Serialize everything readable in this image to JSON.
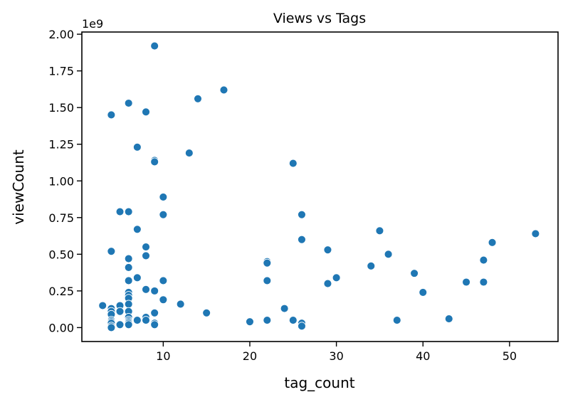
{
  "chart_data": {
    "type": "scatter",
    "title": "Views vs Tags",
    "xlabel": "tag_count",
    "ylabel": "viewCount",
    "y_offset_label": "1e9",
    "xlim": [
      0.6,
      55.6
    ],
    "ylim": [
      -0.095,
      2.015
    ],
    "xticks": [
      10,
      20,
      30,
      40,
      50
    ],
    "yticks": [
      0.0,
      0.25,
      0.5,
      0.75,
      1.0,
      1.25,
      1.5,
      1.75,
      2.0
    ],
    "ytick_labels": [
      "0.00",
      "0.25",
      "0.50",
      "0.75",
      "1.00",
      "1.25",
      "1.50",
      "1.75",
      "2.00"
    ],
    "grid": false,
    "color": "#1f77b4",
    "series": [
      {
        "x": [
          3,
          4,
          4,
          4,
          4,
          4,
          4,
          4,
          4,
          4,
          4,
          5,
          5,
          5,
          5,
          6,
          6,
          6,
          6,
          6,
          6,
          6,
          6,
          6,
          6,
          6,
          6,
          6,
          6,
          6,
          7,
          7,
          7,
          7,
          8,
          8,
          8,
          8,
          8,
          8,
          9,
          9,
          9,
          9,
          9,
          9,
          9,
          10,
          10,
          10,
          10,
          12,
          13,
          14,
          15,
          17,
          20,
          22,
          22,
          22,
          22,
          24,
          25,
          25,
          26,
          26,
          26,
          26,
          29,
          29,
          30,
          34,
          35,
          36,
          37,
          39,
          40,
          43,
          45,
          47,
          47,
          48,
          53
        ],
        "y": [
          0.15,
          1.45,
          0.52,
          0.13,
          0.11,
          0.09,
          0.05,
          0.04,
          0.03,
          0.01,
          0.0,
          0.79,
          0.15,
          0.11,
          0.02,
          1.53,
          0.79,
          0.47,
          0.41,
          0.32,
          0.24,
          0.22,
          0.2,
          0.16,
          0.11,
          0.07,
          0.05,
          0.04,
          0.03,
          0.02,
          1.23,
          0.67,
          0.34,
          0.05,
          1.47,
          0.55,
          0.49,
          0.26,
          0.07,
          0.05,
          1.92,
          1.14,
          1.13,
          0.25,
          0.1,
          0.03,
          0.02,
          0.89,
          0.77,
          0.32,
          0.19,
          0.16,
          1.19,
          1.56,
          0.1,
          1.62,
          0.04,
          0.45,
          0.44,
          0.32,
          0.05,
          0.13,
          1.12,
          0.05,
          0.77,
          0.6,
          0.03,
          0.01,
          0.53,
          0.3,
          0.34,
          0.42,
          0.66,
          0.5,
          0.05,
          0.37,
          0.24,
          0.06,
          0.31,
          0.46,
          0.31,
          0.58,
          0.64
        ]
      }
    ]
  }
}
